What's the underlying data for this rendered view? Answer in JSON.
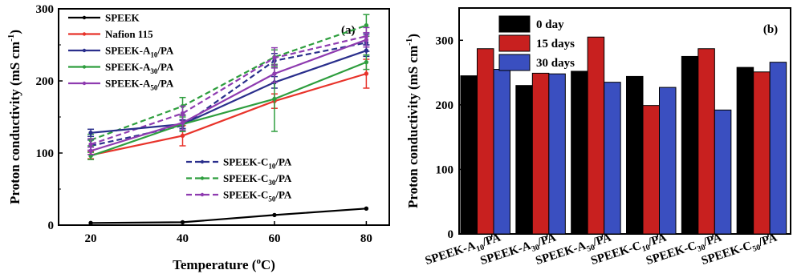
{
  "chart_data": [
    {
      "type": "line",
      "panel_label": "(a)",
      "xlabel": "Temperature (oC)",
      "ylabel": "Proton conductivity (mS cm-1)",
      "x": [
        20,
        40,
        60,
        80
      ],
      "xticks": [
        "20",
        "40",
        "60",
        "80"
      ],
      "yticks": [
        "0",
        "100",
        "200",
        "300"
      ],
      "xlim": [
        13,
        85
      ],
      "ylim": [
        0,
        300
      ],
      "grid": false,
      "legend_position": "top-left and lower-right",
      "series": [
        {
          "name": "SPEEK",
          "base": "SPEEK",
          "sub": "",
          "suffix": "",
          "color": "#000000",
          "dash": false,
          "values": [
            3,
            4,
            14,
            23
          ],
          "errors": [
            0,
            0,
            0,
            0
          ]
        },
        {
          "name": "Nafion 115",
          "base": "Nafion 115",
          "sub": "",
          "suffix": "",
          "color": "#e8332a",
          "dash": false,
          "values": [
            97,
            124,
            172,
            210
          ],
          "errors": [
            5,
            14,
            10,
            20
          ]
        },
        {
          "name": "SPEEK-A10/PA",
          "base": "SPEEK-A",
          "sub": "10",
          "suffix": "/PA",
          "color": "#2a2f8c",
          "dash": false,
          "values": [
            128,
            140,
            198,
            242
          ],
          "errors": [
            5,
            6,
            8,
            8
          ]
        },
        {
          "name": "SPEEK-A30/PA",
          "base": "SPEEK-A",
          "sub": "30",
          "suffix": "/PA",
          "color": "#2e9e3e",
          "dash": false,
          "values": [
            96,
            140,
            175,
            226
          ],
          "errors": [
            5,
            10,
            45,
            10
          ]
        },
        {
          "name": "SPEEK-A50/PA",
          "base": "SPEEK-A",
          "sub": "50",
          "suffix": "/PA",
          "color": "#8e3bb0",
          "dash": false,
          "values": [
            103,
            142,
            210,
            257
          ],
          "errors": [
            5,
            10,
            12,
            10
          ]
        },
        {
          "name": "SPEEK-C10/PA",
          "base": "SPEEK-C",
          "sub": "10",
          "suffix": "/PA",
          "color": "#2a2f8c",
          "dash": true,
          "values": [
            110,
            138,
            228,
            253
          ],
          "errors": [
            8,
            8,
            10,
            12
          ]
        },
        {
          "name": "SPEEK-C30/PA",
          "base": "SPEEK-C",
          "sub": "30",
          "suffix": "/PA",
          "color": "#2e9e3e",
          "dash": true,
          "values": [
            118,
            165,
            233,
            277
          ],
          "errors": [
            8,
            12,
            10,
            15
          ]
        },
        {
          "name": "SPEEK-C50/PA",
          "base": "SPEEK-C",
          "sub": "50",
          "suffix": "/PA",
          "color": "#8e3bb0",
          "dash": true,
          "values": [
            112,
            155,
            232,
            262
          ],
          "errors": [
            8,
            10,
            14,
            12
          ]
        }
      ]
    },
    {
      "type": "bar",
      "panel_label": "(b)",
      "ylabel": "Proton conductivity (mS cm-1)",
      "yticks": [
        "0",
        "100",
        "200",
        "300"
      ],
      "ylim": [
        0,
        350
      ],
      "grid": false,
      "legend_position": "top-left",
      "categories": [
        {
          "base": "SPEEK-A",
          "sub": "10",
          "suffix": "/PA",
          "name": "SPEEK-A10/PA"
        },
        {
          "base": "SPEEK-A",
          "sub": "30",
          "suffix": "/PA",
          "name": "SPEEK-A30/PA"
        },
        {
          "base": "SPEEK-A",
          "sub": "50",
          "suffix": "/PA",
          "name": "SPEEK-A50/PA"
        },
        {
          "base": "SPEEK-C",
          "sub": "10",
          "suffix": "/PA",
          "name": "SPEEK-C10/PA"
        },
        {
          "base": "SPEEK-C",
          "sub": "30",
          "suffix": "/PA",
          "name": "SPEEK-C30/PA"
        },
        {
          "base": "SPEEK-C",
          "sub": "50",
          "suffix": "/PA",
          "name": "SPEEK-C50/PA"
        }
      ],
      "series": [
        {
          "name": "0 day",
          "color": "#000000",
          "values": [
            245,
            230,
            252,
            244,
            275,
            258
          ]
        },
        {
          "name": "15 days",
          "color": "#c8201f",
          "values": [
            287,
            249,
            305,
            199,
            287,
            251
          ]
        },
        {
          "name": "30 days",
          "color": "#3a4fc0",
          "values": [
            255,
            248,
            235,
            227,
            192,
            266
          ]
        }
      ]
    }
  ]
}
